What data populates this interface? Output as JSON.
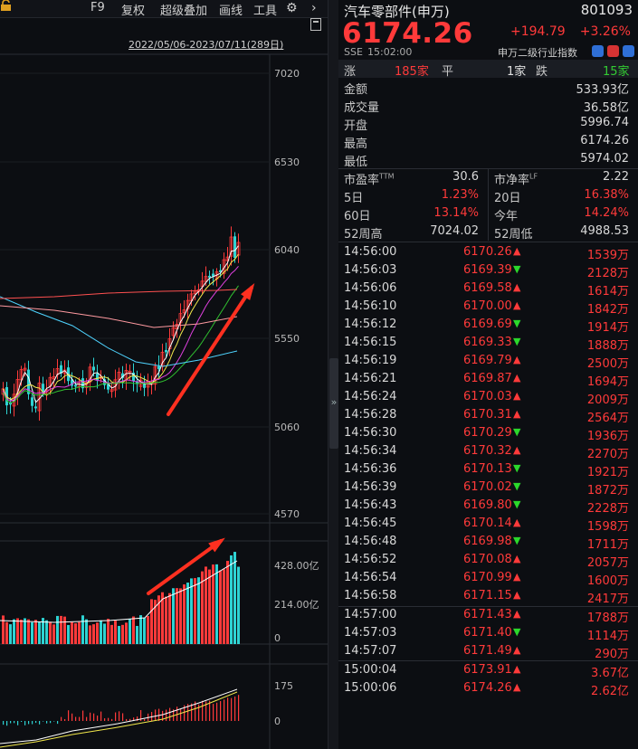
{
  "toolbar": {
    "items": [
      "F9",
      "复权",
      "超级叠加",
      "画线",
      "工具"
    ],
    "more": "›"
  },
  "chart": {
    "date_range": "2022/05/06-2023/07/11(289日)",
    "price_axis": [
      "7020",
      "6530",
      "6040",
      "5550",
      "5060",
      "4570"
    ],
    "volume_axis": [
      "428.00亿",
      "214.00亿",
      "0"
    ],
    "macd_axis": [
      "175",
      "0"
    ],
    "colors": {
      "up": "#ff3a3a",
      "down": "#2ed3d3",
      "ma1": "#ffffff",
      "ma2": "#f3e94b",
      "ma3": "#e040e0",
      "ma4": "#30c030",
      "ma5": "#4fd4ff",
      "ma6": "#ff5050",
      "ma7": "#ff9aa0",
      "arrow": "#ff3020"
    }
  },
  "quote": {
    "name": "汽车零部件(申万)",
    "code": "801093",
    "price": "6174.26",
    "change": "+194.79",
    "pct": "+3.26%",
    "exchange": "SSE",
    "time": "15:02:00",
    "index_type": "申万二级行业指数"
  },
  "advance": {
    "up_label": "涨",
    "up_val": "185家",
    "flat_label": "平",
    "flat_val": "1家",
    "down_label": "跌",
    "down_val": "15家"
  },
  "stats": [
    {
      "k": "金额",
      "v": "533.93亿",
      "c": "white"
    },
    {
      "k": "成交量",
      "v": "36.58亿",
      "c": "white"
    },
    {
      "k": "开盘",
      "v": "5996.74",
      "c": "red"
    },
    {
      "k": "最高",
      "v": "6174.26",
      "c": "red"
    },
    {
      "k": "最低",
      "v": "5974.02",
      "c": "green"
    }
  ],
  "ratios": [
    {
      "k": "市盈率",
      "sup": "TTM",
      "v": "30.6",
      "c": "white"
    },
    {
      "k": "市净率",
      "sup": "LF",
      "v": "2.22",
      "c": "white"
    },
    {
      "k": "5日",
      "v": "1.23%",
      "c": "red"
    },
    {
      "k": "20日",
      "v": "16.38%",
      "c": "red"
    },
    {
      "k": "60日",
      "v": "13.14%",
      "c": "red"
    },
    {
      "k": "今年",
      "v": "14.24%",
      "c": "red"
    },
    {
      "k": "52周高",
      "v": "7024.02",
      "c": "white"
    },
    {
      "k": "52周低",
      "v": "4988.53",
      "c": "white"
    }
  ],
  "ticks": [
    {
      "t": "14:56:00",
      "p": "6170.26",
      "d": "up",
      "v": "1539万"
    },
    {
      "t": "14:56:03",
      "p": "6169.39",
      "d": "down",
      "v": "2128万"
    },
    {
      "t": "14:56:06",
      "p": "6169.58",
      "d": "up",
      "v": "1614万"
    },
    {
      "t": "14:56:10",
      "p": "6170.00",
      "d": "up",
      "v": "1842万"
    },
    {
      "t": "14:56:12",
      "p": "6169.69",
      "d": "down",
      "v": "1914万"
    },
    {
      "t": "14:56:15",
      "p": "6169.33",
      "d": "down",
      "v": "1888万"
    },
    {
      "t": "14:56:19",
      "p": "6169.79",
      "d": "up",
      "v": "2500万"
    },
    {
      "t": "14:56:21",
      "p": "6169.87",
      "d": "up",
      "v": "1694万"
    },
    {
      "t": "14:56:24",
      "p": "6170.03",
      "d": "up",
      "v": "2009万"
    },
    {
      "t": "14:56:28",
      "p": "6170.31",
      "d": "up",
      "v": "2564万"
    },
    {
      "t": "14:56:30",
      "p": "6170.29",
      "d": "down",
      "v": "1936万"
    },
    {
      "t": "14:56:34",
      "p": "6170.32",
      "d": "up",
      "v": "2270万"
    },
    {
      "t": "14:56:36",
      "p": "6170.13",
      "d": "down",
      "v": "1921万"
    },
    {
      "t": "14:56:39",
      "p": "6170.02",
      "d": "down",
      "v": "1872万"
    },
    {
      "t": "14:56:43",
      "p": "6169.80",
      "d": "down",
      "v": "2228万"
    },
    {
      "t": "14:56:45",
      "p": "6170.14",
      "d": "up",
      "v": "1598万"
    },
    {
      "t": "14:56:48",
      "p": "6169.98",
      "d": "down",
      "v": "1711万"
    },
    {
      "t": "14:56:52",
      "p": "6170.08",
      "d": "up",
      "v": "2057万"
    },
    {
      "t": "14:56:54",
      "p": "6170.99",
      "d": "up",
      "v": "1600万"
    },
    {
      "t": "14:56:58",
      "p": "6171.15",
      "d": "up",
      "v": "2417万"
    },
    {
      "t": "14:57:00",
      "p": "6171.43",
      "d": "up",
      "v": "1788万"
    },
    {
      "t": "14:57:03",
      "p": "6171.40",
      "d": "down",
      "v": "1114万"
    },
    {
      "t": "14:57:07",
      "p": "6171.49",
      "d": "up",
      "v": "290万"
    },
    {
      "t": "15:00:04",
      "p": "6173.91",
      "d": "up",
      "v": "3.67亿"
    },
    {
      "t": "15:00:06",
      "p": "6174.26",
      "d": "up",
      "v": "2.62亿"
    }
  ]
}
